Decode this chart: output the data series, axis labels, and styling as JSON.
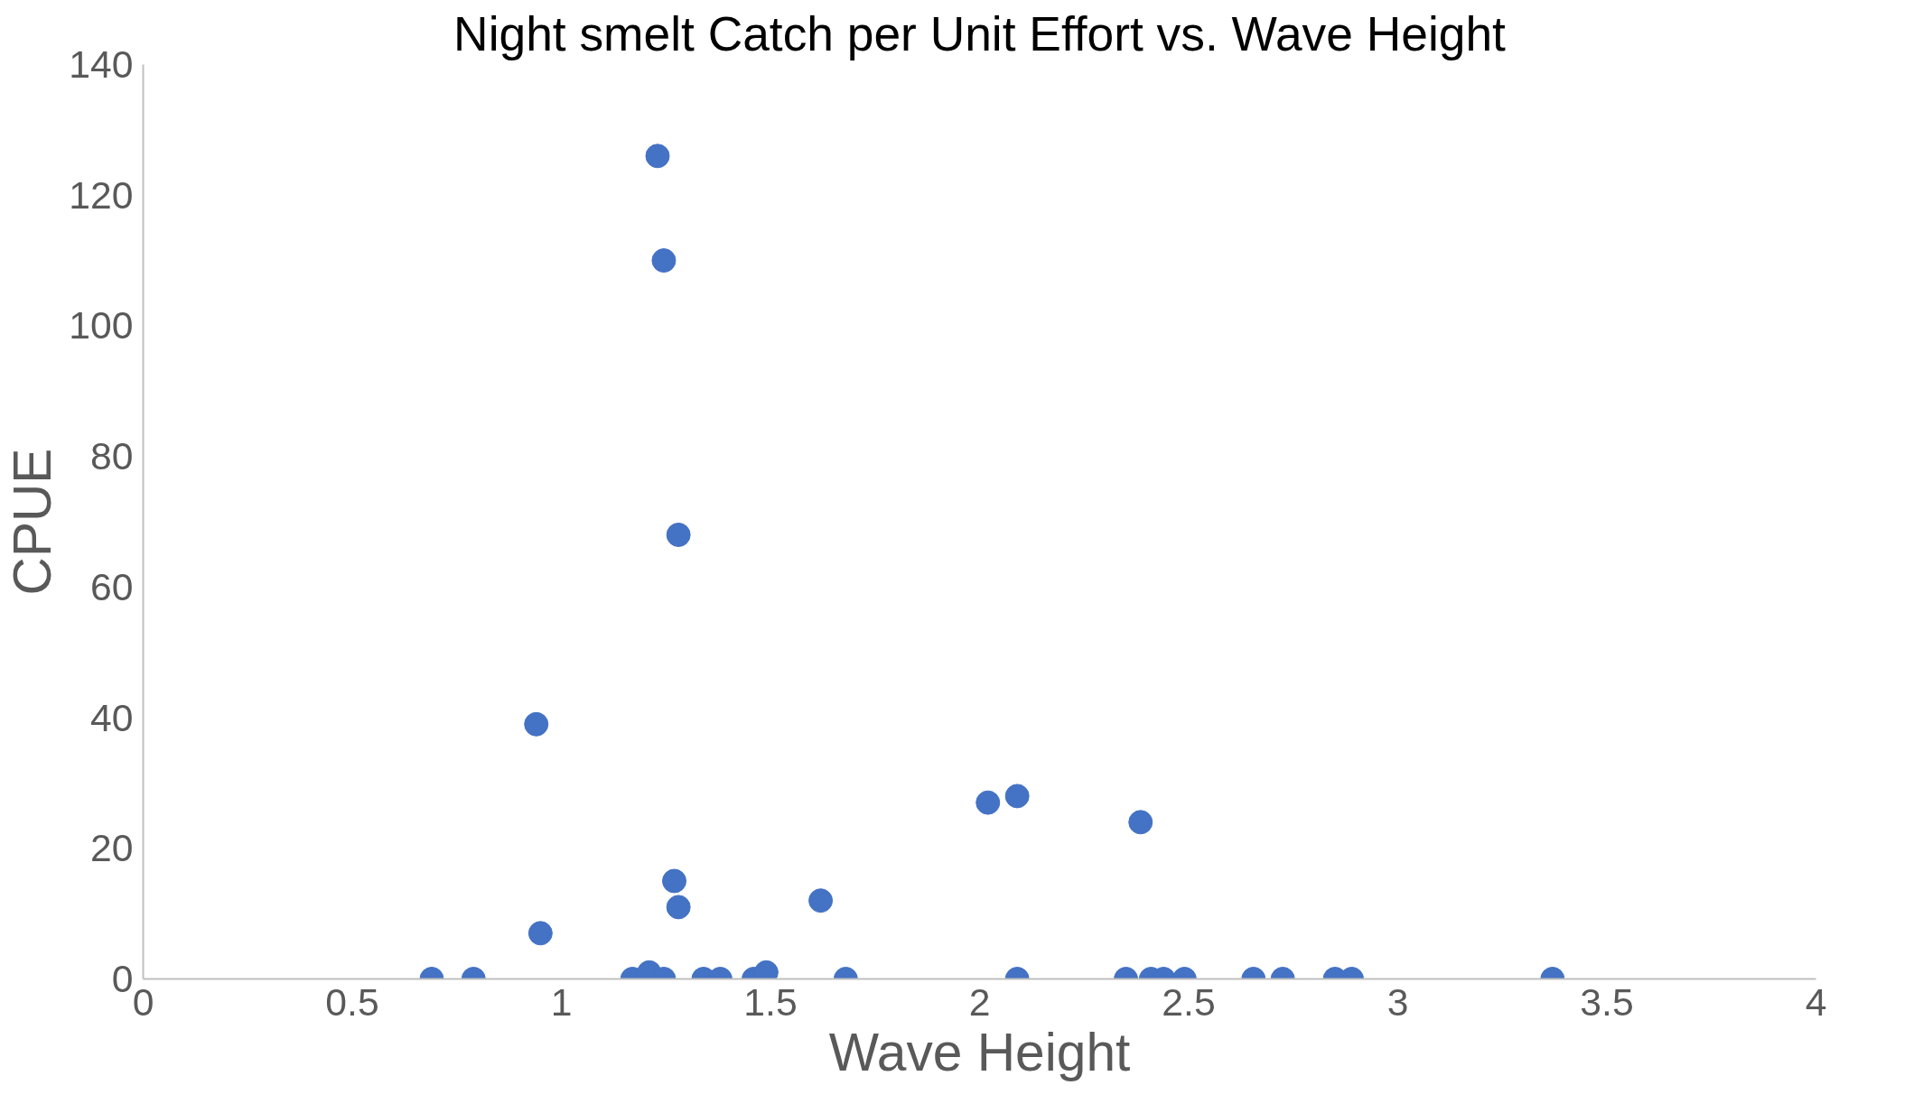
{
  "chart_data": {
    "type": "scatter",
    "title": "Night smelt Catch per Unit Effort vs. Wave Height",
    "xlabel": "Wave Height",
    "ylabel": "CPUE",
    "x": [
      0.69,
      0.79,
      0.94,
      0.95,
      1.17,
      1.21,
      1.245,
      1.23,
      1.245,
      1.28,
      1.27,
      1.28,
      1.34,
      1.38,
      1.46,
      1.49,
      1.62,
      1.68,
      2.02,
      2.09,
      2.09,
      2.35,
      2.41,
      2.44,
      2.49,
      2.385,
      2.655,
      2.725,
      2.85,
      2.89,
      3.37
    ],
    "series": [
      {
        "color": "#4472c4",
        "values": [
          0,
          0,
          39,
          7,
          0,
          1,
          0,
          126,
          110,
          68,
          15,
          11,
          0,
          0,
          0,
          1,
          12,
          0,
          27,
          28,
          0,
          0,
          0,
          0,
          0,
          24,
          0,
          0,
          0,
          0,
          0
        ]
      }
    ],
    "xlim": [
      0,
      4
    ],
    "xticks": [
      0,
      0.5,
      1,
      1.5,
      2,
      2.5,
      3,
      3.5,
      4
    ],
    "ylim": [
      0,
      140
    ],
    "yticks": [
      0,
      20,
      40,
      60,
      80,
      100,
      120,
      140
    ],
    "grid": false,
    "marker": "circle"
  }
}
